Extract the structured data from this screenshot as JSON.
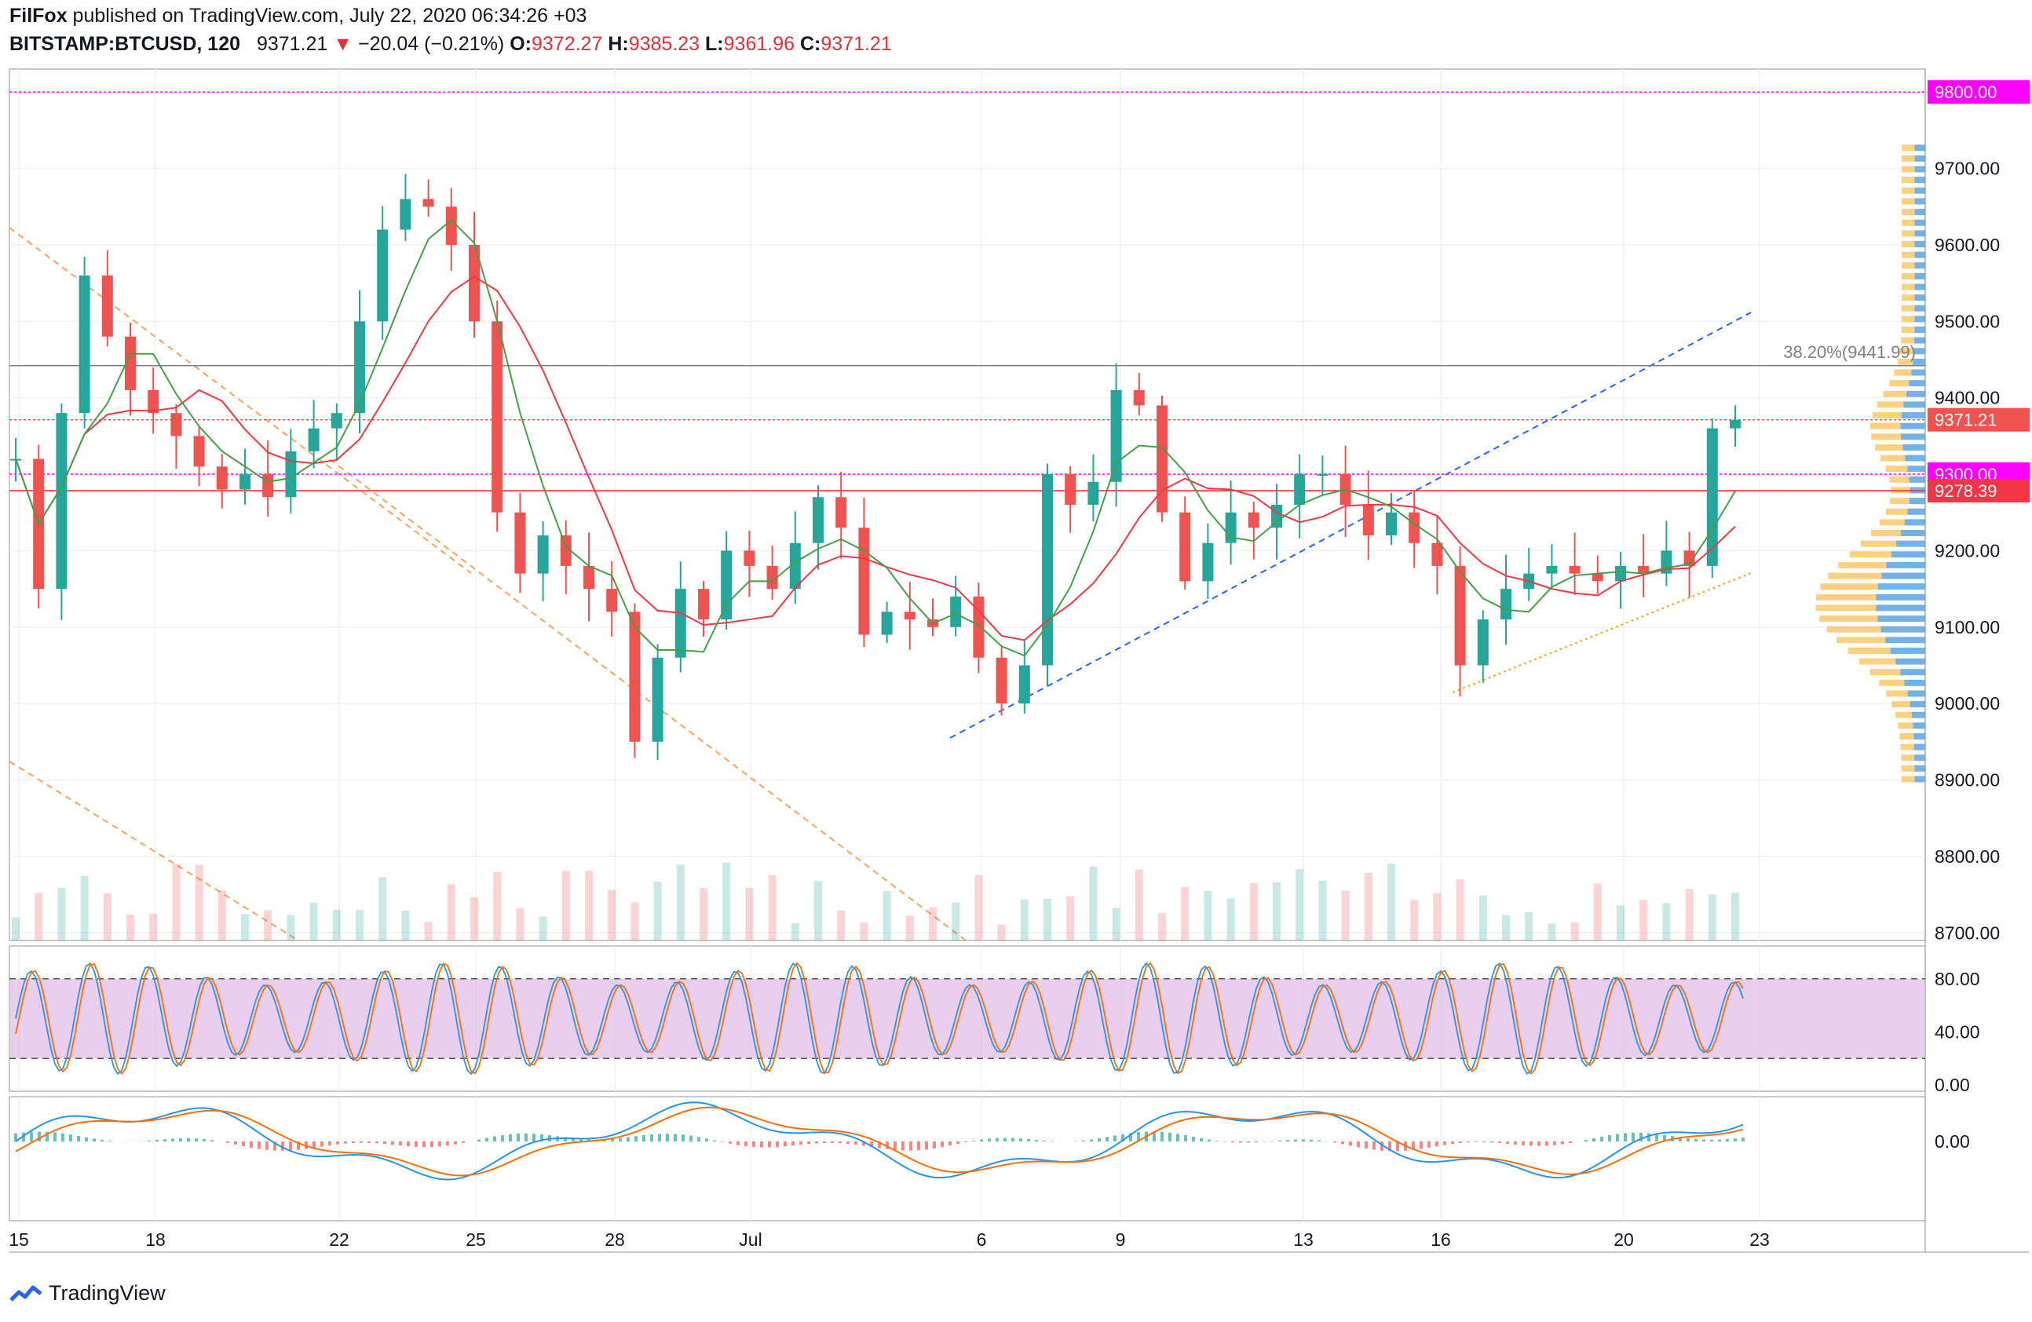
{
  "header": {
    "publisher": "FilFox",
    "published_text": " published on TradingView.com, July 22, 2020 06:34:26 +03",
    "symbol": "BITSTAMP:BTCUSD, 120",
    "last": "9371.21",
    "change_arrow": "▼",
    "change": "−20.04 (−0.21%)",
    "o_label": "O:",
    "o": "9372.27",
    "h_label": "H:",
    "h": "9385.23",
    "l_label": "L:",
    "l": "9361.96",
    "c_label": "C:",
    "c": "9371.21"
  },
  "footer": {
    "brand": "TradingView"
  },
  "colors": {
    "up": "#26a69a",
    "down": "#ef5350",
    "magenta": "#ff00ff",
    "red_level": "#f23645",
    "stoch_band": "#e1bee7",
    "macd": "#2196f3",
    "signal": "#ff6d00"
  },
  "chart_data": {
    "type": "candlestick",
    "title": "BITSTAMP:BTCUSD, 120",
    "ylim": [
      8690,
      9830
    ],
    "y_ticks": [
      "9800.00",
      "9700.00",
      "9600.00",
      "9500.00",
      "9400.00",
      "9300.00",
      "9200.00",
      "9100.00",
      "9000.00",
      "8900.00",
      "8800.00",
      "8700.00"
    ],
    "x_ticks": [
      "15",
      "18",
      "22",
      "25",
      "28",
      "Jul",
      "6",
      "9",
      "13",
      "16",
      "20",
      "23"
    ],
    "price_labels": [
      {
        "text": "9800.00",
        "value": 9800,
        "color": "#ff00ff"
      },
      {
        "text": "9371.21",
        "value": 9371.21,
        "color": "#ef5350"
      },
      {
        "text": "9300.00",
        "value": 9300,
        "color": "#ff00ff"
      },
      {
        "text": "9278.39",
        "value": 9278.39,
        "color": "#f23645"
      }
    ],
    "fib_label": "38.20%(9441.99)",
    "fib_value": 9441.99,
    "close_path": [
      [
        "15",
        9320
      ],
      [
        "15",
        9150
      ],
      [
        "16",
        9380
      ],
      [
        "16",
        9560
      ],
      [
        "17",
        9480
      ],
      [
        "17",
        9410
      ],
      [
        "18",
        9380
      ],
      [
        "18",
        9350
      ],
      [
        "19",
        9310
      ],
      [
        "19",
        9280
      ],
      [
        "20",
        9300
      ],
      [
        "20",
        9270
      ],
      [
        "21",
        9330
      ],
      [
        "21",
        9360
      ],
      [
        "22",
        9380
      ],
      [
        "22",
        9500
      ],
      [
        "22",
        9620
      ],
      [
        "23",
        9660
      ],
      [
        "23",
        9650
      ],
      [
        "24",
        9600
      ],
      [
        "24",
        9500
      ],
      [
        "25",
        9250
      ],
      [
        "25",
        9170
      ],
      [
        "26",
        9220
      ],
      [
        "26",
        9180
      ],
      [
        "27",
        9150
      ],
      [
        "27",
        9120
      ],
      [
        "28",
        8950
      ],
      [
        "28",
        9060
      ],
      [
        "29",
        9150
      ],
      [
        "29",
        9110
      ],
      [
        "30",
        9200
      ],
      [
        "30",
        9180
      ],
      [
        "Jul",
        9150
      ],
      [
        "Jul",
        9210
      ],
      [
        "2",
        9270
      ],
      [
        "2",
        9230
      ],
      [
        "3",
        9090
      ],
      [
        "3",
        9120
      ],
      [
        "4",
        9110
      ],
      [
        "4",
        9100
      ],
      [
        "5",
        9140
      ],
      [
        "5",
        9060
      ],
      [
        "6",
        9000
      ],
      [
        "6",
        9050
      ],
      [
        "7",
        9300
      ],
      [
        "7",
        9260
      ],
      [
        "8",
        9290
      ],
      [
        "8",
        9410
      ],
      [
        "9",
        9390
      ],
      [
        "9",
        9250
      ],
      [
        "10",
        9160
      ],
      [
        "10",
        9210
      ],
      [
        "11",
        9250
      ],
      [
        "11",
        9230
      ],
      [
        "12",
        9260
      ],
      [
        "12",
        9300
      ],
      [
        "13",
        9300
      ],
      [
        "13",
        9260
      ],
      [
        "14",
        9220
      ],
      [
        "14",
        9250
      ],
      [
        "15",
        9210
      ],
      [
        "15",
        9180
      ],
      [
        "16",
        9050
      ],
      [
        "16",
        9110
      ],
      [
        "17",
        9150
      ],
      [
        "17",
        9170
      ],
      [
        "18",
        9180
      ],
      [
        "18",
        9170
      ],
      [
        "19",
        9160
      ],
      [
        "19",
        9180
      ],
      [
        "20",
        9170
      ],
      [
        "20",
        9200
      ],
      [
        "21",
        9180
      ],
      [
        "21",
        9360
      ],
      [
        "22",
        9371.21
      ]
    ],
    "stoch_levels": {
      "upper": 80,
      "lower": 20,
      "ticks": [
        "80.00",
        "40.00",
        "0.00"
      ]
    },
    "macd_ticks": [
      "0.00"
    ]
  }
}
